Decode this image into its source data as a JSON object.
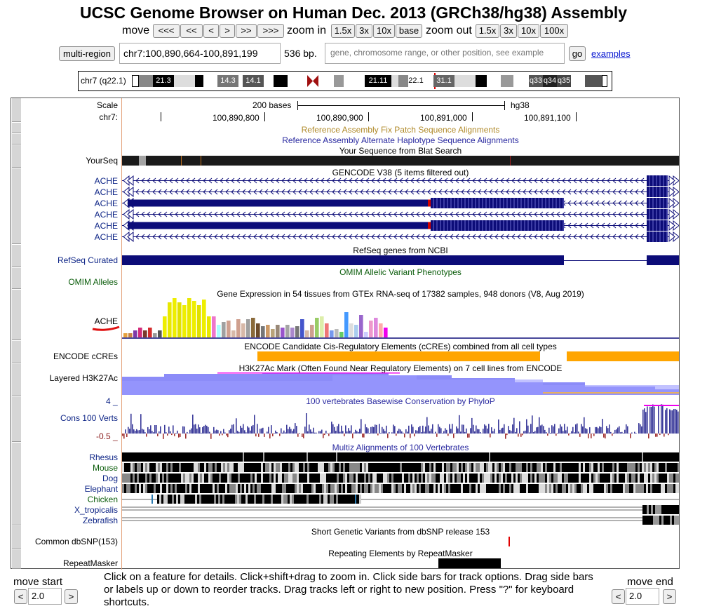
{
  "header": {
    "title": "UCSC Genome Browser on Human Dec. 2013 (GRCh38/hg38) Assembly"
  },
  "nav": {
    "move_label": "move",
    "move_buttons": [
      "<<<",
      "<<",
      "<",
      ">",
      ">>",
      ">>>"
    ],
    "zoom_in_label": "zoom in",
    "zoom_in_buttons": [
      "1.5x",
      "3x",
      "10x",
      "base"
    ],
    "zoom_out_label": "zoom out",
    "zoom_out_buttons": [
      "1.5x",
      "3x",
      "10x",
      "100x"
    ]
  },
  "position": {
    "multi_region": "multi-region",
    "value": "chr7:100,890,664-100,891,199",
    "size": "536 bp.",
    "search_placeholder": "gene, chromosome range, or other position, see example",
    "go": "go",
    "examples": "examples"
  },
  "ideogram": {
    "label": "chr7 (q22.1)",
    "bands": [
      "21.3",
      "14.3",
      "14.1",
      "21.11",
      "22.1",
      "31.1",
      "q33",
      "q34",
      "q35"
    ]
  },
  "ruler": {
    "scale_label": "Scale",
    "chrom_label": "chr7:",
    "scale_text": "200 bases",
    "assembly": "hg38",
    "ticks": [
      "100,890,800",
      "100,890,900",
      "100,891,000",
      "100,891,100"
    ]
  },
  "tracks": {
    "fix_patch": "Reference Assembly Fix Patch Sequence Alignments",
    "alt_haplo": "Reference Assembly Alternate Haplotype Sequence Alignments",
    "blat_title": "Your Sequence from Blat Search",
    "blat_label": "YourSeq",
    "gencode_title": "GENCODE V38 (5 items filtered out)",
    "gencode_items": [
      "ACHE",
      "ACHE",
      "ACHE",
      "ACHE",
      "ACHE",
      "ACHE"
    ],
    "refseq_title": "RefSeq genes from NCBI",
    "refseq_label": "RefSeq Curated",
    "omim_title": "OMIM Allelic Variant Phenotypes",
    "omim_label": "OMIM Alleles",
    "gtex_title": "Gene Expression in 54 tissues from GTEx RNA-seq of 17382 samples, 948 donors (V8, Aug 2019)",
    "gtex_label": "ACHE",
    "encode_title": "ENCODE Candidate Cis-Regulatory Elements (cCREs) combined from all cell types",
    "encode_label": "ENCODE cCREs",
    "h3k27_title": "H3K27Ac Mark (Often Found Near Regulatory Elements) on 7 cell lines from ENCODE",
    "h3k27_label": "Layered H3K27Ac",
    "cons_title": "100 vertebrates Basewise Conservation by PhyloP",
    "cons_label": "Cons 100 Verts",
    "cons_max": "4 _",
    "cons_min": "-0.5 _",
    "multiz_title": "Multiz Alignments of 100 Vertebrates",
    "multiz_species": [
      "Rhesus",
      "Mouse",
      "Dog",
      "Elephant",
      "Chicken",
      "X_tropicalis",
      "Zebrafish"
    ],
    "snp_title": "Short Genetic Variants from dbSNP release 153",
    "snp_label": "Common dbSNP(153)",
    "rmsk_title": "Repeating Elements by RepeatMasker",
    "rmsk_label": "RepeatMasker"
  },
  "footer": {
    "move_start": "move start",
    "move_end": "move end",
    "start_value": "2.0",
    "end_value": "2.0",
    "left_arrow": "<",
    "right_arrow": ">",
    "help": "Click on a feature for details. Click+shift+drag to zoom in. Click side bars for track options. Drag side bars or labels up or down to reorder tracks. Drag tracks left or right to new position. Press \"?\" for keyboard shortcuts."
  },
  "gtex_values": [
    6,
    6,
    10,
    14,
    10,
    14,
    6,
    10,
    30,
    50,
    56,
    50,
    46,
    56,
    52,
    46,
    54,
    30,
    30,
    18,
    22,
    24,
    10,
    26,
    20,
    26,
    28,
    20,
    16,
    18,
    12,
    18,
    14,
    18,
    14,
    16,
    26,
    10,
    18,
    28,
    30,
    20,
    10,
    12,
    8,
    36,
    20,
    18,
    32,
    8,
    24,
    28,
    20,
    14
  ],
  "gtex_colors": [
    "#e6a13d",
    "#c78244",
    "#7e3aa8",
    "#d32c7a",
    "#7a3a2c",
    "#d32c2c",
    "#999",
    "#555",
    "#eeee00",
    "#e8e800",
    "#eeee00",
    "#e0e000",
    "#eeee00",
    "#e8e800",
    "#eeee00",
    "#e0e000",
    "#eeee00",
    "#e8e800",
    "#ee77cc",
    "#aaffff",
    "#a0a0a0",
    "#cfa08f",
    "#d7b8a8",
    "#cfa08f",
    "#d7b8a8",
    "#a0a0a0",
    "#8a6a3a",
    "#6d4b2a",
    "#777",
    "#cc9966",
    "#b9a37a",
    "#998877",
    "#9955cc",
    "#a4a4a4",
    "#aa88cc",
    "#777",
    "#4455cc",
    "#d7b8a8",
    "#cfa08f",
    "#99cc66",
    "#ddeeaa",
    "#ee7777",
    "#7799ee",
    "#bbbbbb",
    "#66cc66",
    "#4499ff",
    "#dddddd",
    "#aaccee",
    "#9966cc",
    "#ccccff",
    "#ee99cc",
    "#dd88dd",
    "#ffaaaa",
    "#ee00ee"
  ],
  "colors": {
    "gene": "#0c0c78",
    "encode": "#ffa500",
    "h3k27": "#7f7ff7",
    "phylop": "#3a3a9a",
    "cds_red": "#d00000"
  }
}
